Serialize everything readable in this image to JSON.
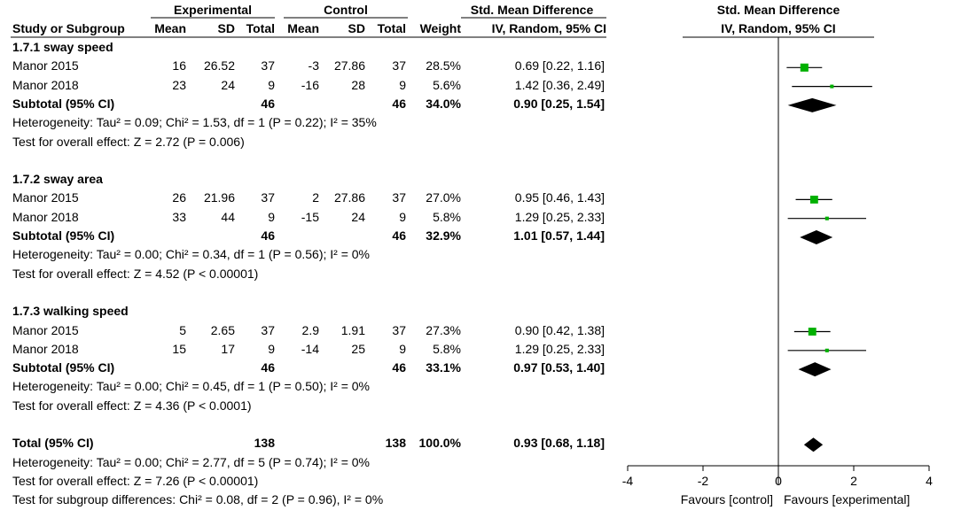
{
  "headers": {
    "experimental": "Experimental",
    "control": "Control",
    "smd": "Std. Mean Difference",
    "study": "Study or Subgroup",
    "mean_e": "Mean",
    "sd_e": "SD",
    "total_e": "Total",
    "mean_c": "Mean",
    "sd_c": "SD",
    "total_c": "Total",
    "weight": "Weight",
    "method": "IV, Random, 95% CI"
  },
  "rows": [
    {
      "kind": "group",
      "label": "1.7.1 sway speed"
    },
    {
      "kind": "study",
      "label": "Manor 2015",
      "mean_e": "16",
      "sd_e": "26.52",
      "n_e": "37",
      "mean_c": "-3",
      "sd_c": "27.86",
      "n_c": "37",
      "weight": "28.5%",
      "ci_text": "0.69 [0.22, 1.16]"
    },
    {
      "kind": "study",
      "label": "Manor 2018",
      "mean_e": "23",
      "sd_e": "24",
      "n_e": "9",
      "mean_c": "-16",
      "sd_c": "28",
      "n_c": "9",
      "weight": "5.6%",
      "ci_text": "1.42 [0.36, 2.49]"
    },
    {
      "kind": "subtotal",
      "label": "Subtotal (95% CI)",
      "n_e": "46",
      "n_c": "46",
      "weight": "34.0%",
      "ci_text": "0.90 [0.25, 1.54]"
    },
    {
      "kind": "note",
      "label": "Heterogeneity: Tau² = 0.09; Chi² = 1.53, df = 1 (P = 0.22); I² = 35%"
    },
    {
      "kind": "note",
      "label": "Test for overall effect: Z = 2.72 (P = 0.006)"
    },
    {
      "kind": "blank"
    },
    {
      "kind": "group",
      "label": "1.7.2 sway area"
    },
    {
      "kind": "study",
      "label": "Manor 2015",
      "mean_e": "26",
      "sd_e": "21.96",
      "n_e": "37",
      "mean_c": "2",
      "sd_c": "27.86",
      "n_c": "37",
      "weight": "27.0%",
      "ci_text": "0.95 [0.46, 1.43]"
    },
    {
      "kind": "study",
      "label": "Manor 2018",
      "mean_e": "33",
      "sd_e": "44",
      "n_e": "9",
      "mean_c": "-15",
      "sd_c": "24",
      "n_c": "9",
      "weight": "5.8%",
      "ci_text": "1.29 [0.25, 2.33]"
    },
    {
      "kind": "subtotal",
      "label": "Subtotal (95% CI)",
      "n_e": "46",
      "n_c": "46",
      "weight": "32.9%",
      "ci_text": "1.01 [0.57, 1.44]"
    },
    {
      "kind": "note",
      "label": "Heterogeneity: Tau² = 0.00; Chi² = 0.34, df = 1 (P = 0.56); I² = 0%"
    },
    {
      "kind": "note",
      "label": "Test for overall effect: Z = 4.52 (P < 0.00001)"
    },
    {
      "kind": "blank"
    },
    {
      "kind": "group",
      "label": "1.7.3 walking speed"
    },
    {
      "kind": "study",
      "label": "Manor 2015",
      "mean_e": "5",
      "sd_e": "2.65",
      "n_e": "37",
      "mean_c": "2.9",
      "sd_c": "1.91",
      "n_c": "37",
      "weight": "27.3%",
      "ci_text": "0.90 [0.42, 1.38]"
    },
    {
      "kind": "study",
      "label": "Manor 2018",
      "mean_e": "15",
      "sd_e": "17",
      "n_e": "9",
      "mean_c": "-14",
      "sd_c": "25",
      "n_c": "9",
      "weight": "5.8%",
      "ci_text": "1.29 [0.25, 2.33]"
    },
    {
      "kind": "subtotal",
      "label": "Subtotal (95% CI)",
      "n_e": "46",
      "n_c": "46",
      "weight": "33.1%",
      "ci_text": "0.97 [0.53, 1.40]"
    },
    {
      "kind": "note",
      "label": "Heterogeneity: Tau² = 0.00; Chi² = 0.45, df = 1 (P = 0.50); I² = 0%"
    },
    {
      "kind": "note",
      "label": "Test for overall effect: Z = 4.36 (P < 0.0001)"
    },
    {
      "kind": "blank"
    },
    {
      "kind": "total",
      "label": "Total (95% CI)",
      "n_e": "138",
      "n_c": "138",
      "weight": "100.0%",
      "ci_text": "0.93 [0.68, 1.18]"
    },
    {
      "kind": "note",
      "label": "Heterogeneity: Tau² = 0.00; Chi² = 2.77, df = 5 (P = 0.74); I² = 0%"
    },
    {
      "kind": "note",
      "label": "Test for overall effect: Z = 7.26 (P < 0.00001)"
    },
    {
      "kind": "note",
      "label": "Test for subgroup differences: Chi² = 0.08, df = 2 (P = 0.96), I² = 0%"
    }
  ],
  "chart_data": {
    "type": "scatter",
    "subtype": "forest",
    "title": "Std. Mean Difference",
    "subtitle": "IV, Random, 95% CI",
    "xlim": [
      -4,
      4
    ],
    "xticks": [
      "-4",
      "-2",
      "0",
      "2",
      "4"
    ],
    "xtick_values": [
      -4,
      -2,
      0,
      2,
      4
    ],
    "left_label": "Favours [control]",
    "right_label": "Favours [experimental]",
    "study_color": "#00b000",
    "studies": [
      {
        "row": 1,
        "est": 0.69,
        "lo": 0.22,
        "hi": 1.16,
        "weight": 28.5
      },
      {
        "row": 2,
        "est": 1.42,
        "lo": 0.36,
        "hi": 2.49,
        "weight": 5.6
      },
      {
        "row": 8,
        "est": 0.95,
        "lo": 0.46,
        "hi": 1.43,
        "weight": 27.0
      },
      {
        "row": 9,
        "est": 1.29,
        "lo": 0.25,
        "hi": 2.33,
        "weight": 5.8
      },
      {
        "row": 15,
        "est": 0.9,
        "lo": 0.42,
        "hi": 1.38,
        "weight": 27.3
      },
      {
        "row": 16,
        "est": 1.29,
        "lo": 0.25,
        "hi": 2.33,
        "weight": 5.8
      }
    ],
    "diamonds": [
      {
        "row": 3,
        "est": 0.9,
        "lo": 0.25,
        "hi": 1.54
      },
      {
        "row": 10,
        "est": 1.01,
        "lo": 0.57,
        "hi": 1.44
      },
      {
        "row": 17,
        "est": 0.97,
        "lo": 0.53,
        "hi": 1.4
      },
      {
        "row": 21,
        "est": 0.93,
        "lo": 0.68,
        "hi": 1.18
      }
    ]
  }
}
